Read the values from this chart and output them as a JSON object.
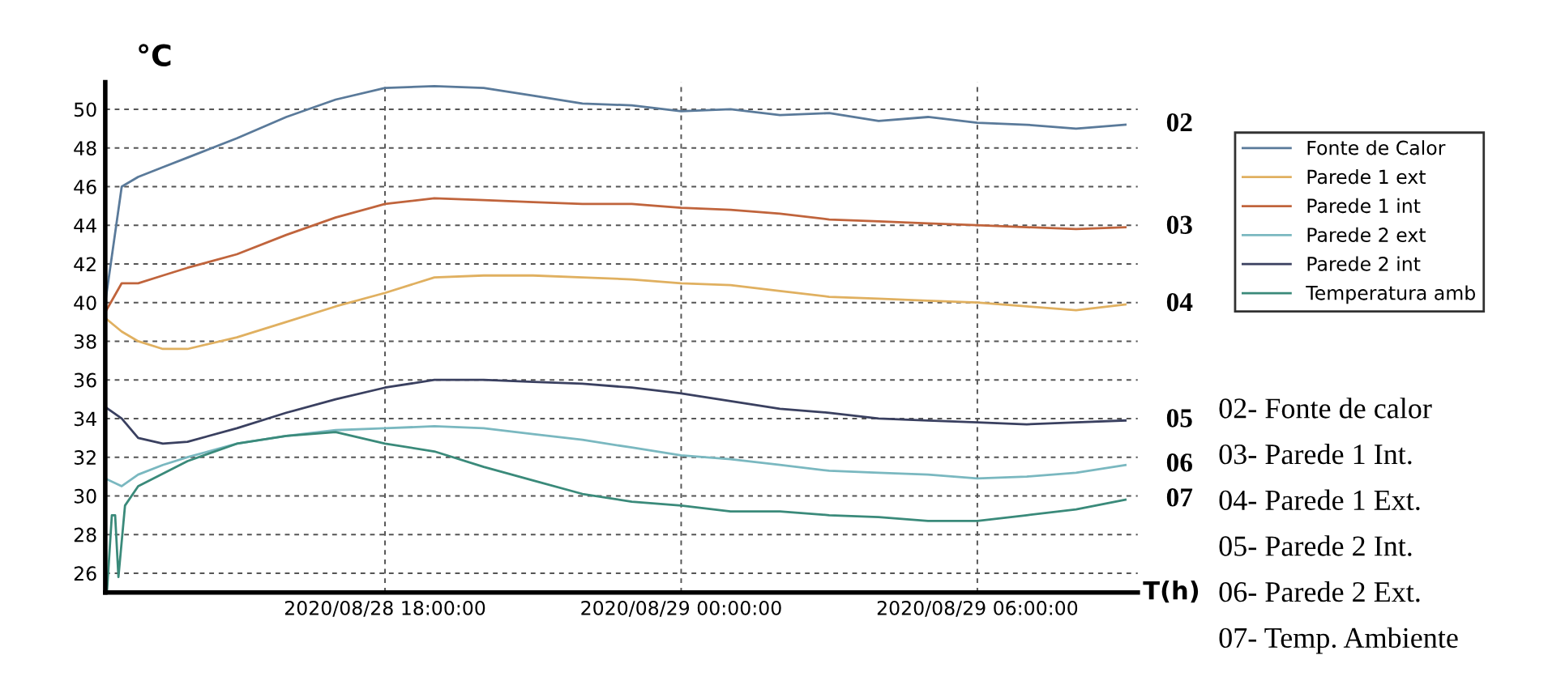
{
  "chart_data": {
    "type": "line",
    "ylabel": "°C",
    "xlabel": "T(h)",
    "xlim": [
      "2020-08-28T12:20",
      "2020-08-29T09:15"
    ],
    "ylim": [
      25,
      51.4
    ],
    "xticks": [
      {
        "value": "2020-08-28T18:00",
        "label": "2020/08/28 18:00:00"
      },
      {
        "value": "2020-08-29T00:00",
        "label": "2020/08/29 00:00:00"
      },
      {
        "value": "2020-08-29T06:00",
        "label": "2020/08/29 06:00:00"
      }
    ],
    "yticks": [
      26,
      28,
      30,
      32,
      34,
      36,
      38,
      40,
      42,
      44,
      46,
      48,
      50
    ],
    "grid": true,
    "legend": "right",
    "marker": "none",
    "line_style": "solid",
    "x": [
      "2020-08-28T12:20",
      "2020-08-28T12:40",
      "2020-08-28T13:00",
      "2020-08-28T13:30",
      "2020-08-28T14:00",
      "2020-08-28T15:00",
      "2020-08-28T16:00",
      "2020-08-28T17:00",
      "2020-08-28T18:00",
      "2020-08-28T19:00",
      "2020-08-28T20:00",
      "2020-08-28T21:00",
      "2020-08-28T22:00",
      "2020-08-28T23:00",
      "2020-08-29T00:00",
      "2020-08-29T01:00",
      "2020-08-29T02:00",
      "2020-08-29T03:00",
      "2020-08-29T04:00",
      "2020-08-29T05:00",
      "2020-08-29T06:00",
      "2020-08-29T07:00",
      "2020-08-29T08:00",
      "2020-08-29T09:00"
    ],
    "series": [
      {
        "name": "Fonte de Calor",
        "color": "#5a7a9a",
        "values": [
          40.0,
          46.0,
          46.5,
          47.0,
          47.5,
          48.5,
          49.6,
          50.5,
          51.1,
          51.2,
          51.1,
          50.7,
          50.3,
          50.2,
          49.9,
          50.0,
          49.7,
          49.8,
          49.4,
          49.6,
          49.3,
          49.2,
          49.0,
          49.2
        ]
      },
      {
        "name": "Parede 1 ext",
        "color": "#e0b060",
        "values": [
          39.2,
          38.5,
          38.0,
          37.6,
          37.6,
          38.2,
          39.0,
          39.8,
          40.5,
          41.3,
          41.4,
          41.4,
          41.3,
          41.2,
          41.0,
          40.9,
          40.6,
          40.3,
          40.2,
          40.1,
          40.0,
          39.8,
          39.6,
          39.9
        ]
      },
      {
        "name": "Parede 1 int",
        "color": "#c0643c",
        "values": [
          39.5,
          41.0,
          41.0,
          41.4,
          41.8,
          42.5,
          43.5,
          44.4,
          45.1,
          45.4,
          45.3,
          45.2,
          45.1,
          45.1,
          44.9,
          44.8,
          44.6,
          44.3,
          44.2,
          44.1,
          44.0,
          43.9,
          43.8,
          43.9
        ]
      },
      {
        "name": "Parede 2 ext",
        "color": "#7ab8c0",
        "values": [
          30.9,
          30.5,
          31.1,
          31.6,
          32.0,
          32.7,
          33.1,
          33.4,
          33.5,
          33.6,
          33.5,
          33.2,
          32.9,
          32.5,
          32.1,
          31.9,
          31.6,
          31.3,
          31.2,
          31.1,
          30.9,
          31.0,
          31.2,
          31.6
        ]
      },
      {
        "name": "Parede 2 int",
        "color": "#3a4060",
        "values": [
          34.6,
          34.0,
          33.0,
          32.7,
          32.8,
          33.5,
          34.3,
          35.0,
          35.6,
          36.0,
          36.0,
          35.9,
          35.8,
          35.6,
          35.3,
          34.9,
          34.5,
          34.3,
          34.0,
          33.9,
          33.8,
          33.7,
          33.8,
          33.9
        ]
      },
      {
        "name": "Temperatura amb",
        "color": "#3a8a7a",
        "x": [
          "2020-08-28T12:20",
          "2020-08-28T12:22",
          "2020-08-28T12:28",
          "2020-08-28T12:32",
          "2020-08-28T12:36",
          "2020-08-28T12:44",
          "2020-08-28T13:00",
          "2020-08-28T14:00",
          "2020-08-28T15:00",
          "2020-08-28T16:00",
          "2020-08-28T17:00",
          "2020-08-28T18:00",
          "2020-08-28T19:00",
          "2020-08-28T20:00",
          "2020-08-28T21:00",
          "2020-08-28T22:00",
          "2020-08-28T23:00",
          "2020-08-29T00:00",
          "2020-08-29T01:00",
          "2020-08-29T02:00",
          "2020-08-29T03:00",
          "2020-08-29T04:00",
          "2020-08-29T05:00",
          "2020-08-29T06:00",
          "2020-08-29T07:00",
          "2020-08-29T08:00",
          "2020-08-29T09:00"
        ],
        "values": [
          25.5,
          25.0,
          29.0,
          29.0,
          25.8,
          29.5,
          30.5,
          31.8,
          32.7,
          33.1,
          33.3,
          32.7,
          32.3,
          31.5,
          30.8,
          30.1,
          29.7,
          29.5,
          29.2,
          29.2,
          29.0,
          28.9,
          28.7,
          28.7,
          29.0,
          29.3,
          29.8
        ]
      }
    ],
    "annotations": [
      {
        "text": "02",
        "x": "2020-08-29T09:00",
        "y": 49.2
      },
      {
        "text": "03",
        "x": "2020-08-29T09:00",
        "y": 43.9
      },
      {
        "text": "04",
        "x": "2020-08-29T09:00",
        "y": 39.9
      },
      {
        "text": "05",
        "x": "2020-08-29T09:00",
        "y": 33.9
      },
      {
        "text": "06",
        "x": "2020-08-29T09:00",
        "y": 31.6
      },
      {
        "text": "07",
        "x": "2020-08-29T09:00",
        "y": 29.8
      },
      "02- Fonte de calor",
      "03- Parede 1 Int.",
      "04- Parede 1 Ext.",
      "05- Parede 2 Int.",
      "06- Parede 2 Ext.",
      "07- Temp. Ambiente"
    ]
  }
}
